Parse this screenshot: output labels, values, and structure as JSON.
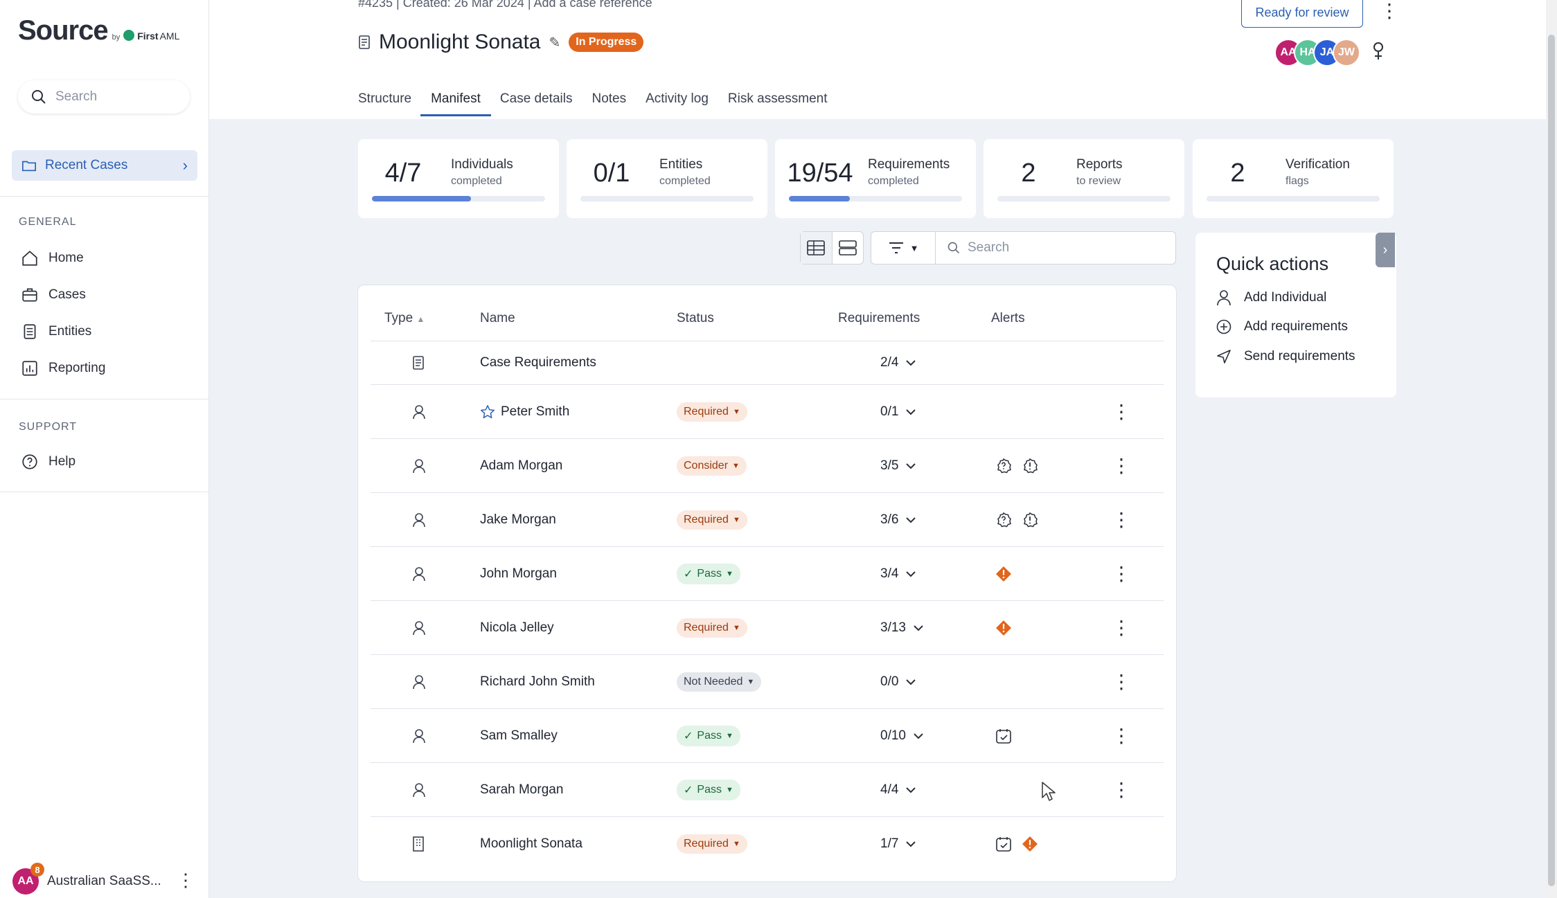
{
  "sidebar": {
    "logo": {
      "word": "Source",
      "by": "by",
      "brand": "First",
      "brand2": "AML"
    },
    "search_placeholder": "Search",
    "recent_cases": "Recent Cases",
    "general_label": "GENERAL",
    "nav": [
      {
        "label": "Home",
        "icon": "home-icon"
      },
      {
        "label": "Cases",
        "icon": "briefcase-icon"
      },
      {
        "label": "Entities",
        "icon": "document-icon"
      },
      {
        "label": "Reporting",
        "icon": "chart-icon"
      }
    ],
    "support_label": "SUPPORT",
    "help": "Help",
    "account": {
      "initials": "AA",
      "notifications": "8",
      "name": "Australian SaaSS..."
    }
  },
  "header": {
    "case_meta": "#4235  |  Created: 26 Mar 2024  |  Add a case reference",
    "title": "Moonlight Sonata",
    "status_badge": "In Progress",
    "ready_button": "Ready for review",
    "avatars": [
      {
        "initials": "AA",
        "color": "#c0206e"
      },
      {
        "initials": "HA",
        "color": "#5cc49a"
      },
      {
        "initials": "JA",
        "color": "#2b5fd6"
      },
      {
        "initials": "JW",
        "color": "#e3a98a"
      }
    ],
    "tabs": [
      "Structure",
      "Manifest",
      "Case details",
      "Notes",
      "Activity log",
      "Risk assessment"
    ],
    "active_tab": "Manifest"
  },
  "stats": [
    {
      "value": "4/7",
      "label": "Individuals",
      "sub": "completed",
      "progress": 0.57
    },
    {
      "value": "0/1",
      "label": "Entities",
      "sub": "completed",
      "progress": 0
    },
    {
      "value": "19/54",
      "label": "Requirements",
      "sub": "completed",
      "progress": 0.35
    },
    {
      "value": "2",
      "label": "Reports",
      "sub": "to review",
      "progress": 0
    },
    {
      "value": "2",
      "label": "Verification",
      "sub": "flags",
      "progress": 0
    }
  ],
  "toolbar": {
    "search_placeholder": "Search"
  },
  "table": {
    "headers": {
      "type": "Type",
      "name": "Name",
      "status": "Status",
      "requirements": "Requirements",
      "alerts": "Alerts"
    },
    "rows": [
      {
        "type": "case",
        "name": "Case Requirements",
        "status": "",
        "requirements": "2/4",
        "alerts": [],
        "starred": false,
        "more": false
      },
      {
        "type": "person",
        "name": "Peter Smith",
        "status": "Required",
        "requirements": "0/1",
        "alerts": [],
        "starred": true,
        "more": true
      },
      {
        "type": "person",
        "name": "Adam Morgan",
        "status": "Consider",
        "requirements": "3/5",
        "alerts": [
          "question",
          "exclaim"
        ],
        "starred": false,
        "more": true
      },
      {
        "type": "person",
        "name": "Jake Morgan",
        "status": "Required",
        "requirements": "3/6",
        "alerts": [
          "question",
          "exclaim"
        ],
        "starred": false,
        "more": true
      },
      {
        "type": "person",
        "name": "John Morgan",
        "status": "Pass",
        "requirements": "3/4",
        "alerts": [
          "flag"
        ],
        "starred": false,
        "more": true
      },
      {
        "type": "person",
        "name": "Nicola Jelley",
        "status": "Required",
        "requirements": "3/13",
        "alerts": [
          "flag"
        ],
        "starred": false,
        "more": true
      },
      {
        "type": "person",
        "name": "Richard John Smith",
        "status": "Not Needed",
        "requirements": "0/0",
        "alerts": [],
        "starred": false,
        "more": true
      },
      {
        "type": "person",
        "name": "Sam Smalley",
        "status": "Pass",
        "requirements": "0/10",
        "alerts": [
          "calendar"
        ],
        "starred": false,
        "more": true
      },
      {
        "type": "person",
        "name": "Sarah Morgan",
        "status": "Pass",
        "requirements": "4/4",
        "alerts": [],
        "starred": false,
        "more": true
      },
      {
        "type": "entity",
        "name": "Moonlight Sonata",
        "status": "Required",
        "requirements": "1/7",
        "alerts": [
          "calendar",
          "flag"
        ],
        "starred": false,
        "more": false
      }
    ]
  },
  "quick_actions": {
    "title": "Quick actions",
    "items": [
      {
        "label": "Add Individual",
        "icon": "person-icon"
      },
      {
        "label": "Add requirements",
        "icon": "plus-circle-icon"
      },
      {
        "label": "Send requirements",
        "icon": "send-icon"
      }
    ]
  },
  "colors": {
    "accent": "#2b5fb3",
    "in_progress": "#e2651c",
    "alert_orange": "#e2651c",
    "progress_fill": "#5b82d6"
  }
}
